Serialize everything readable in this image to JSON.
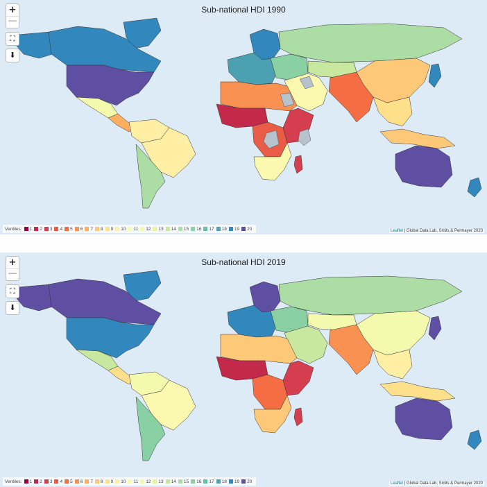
{
  "legend": {
    "title": "Ventiles:",
    "items": [
      {
        "label": "1",
        "color": "#9e0142"
      },
      {
        "label": "2",
        "color": "#c2294a"
      },
      {
        "label": "3",
        "color": "#d53e4f"
      },
      {
        "label": "4",
        "color": "#e95d47"
      },
      {
        "label": "5",
        "color": "#f46d43"
      },
      {
        "label": "6",
        "color": "#f99153"
      },
      {
        "label": "7",
        "color": "#fdae61"
      },
      {
        "label": "8",
        "color": "#fdc877"
      },
      {
        "label": "9",
        "color": "#fee08b"
      },
      {
        "label": "10",
        "color": "#feefa4"
      },
      {
        "label": "11",
        "color": "#fbf8b0"
      },
      {
        "label": "12",
        "color": "#f3faad"
      },
      {
        "label": "13",
        "color": "#e6f598"
      },
      {
        "label": "14",
        "color": "#c7e89e"
      },
      {
        "label": "15",
        "color": "#abdda4"
      },
      {
        "label": "16",
        "color": "#89d0a4"
      },
      {
        "label": "17",
        "color": "#66c2a5"
      },
      {
        "label": "18",
        "color": "#4ba0b1"
      },
      {
        "label": "19",
        "color": "#3288bd"
      },
      {
        "label": "20",
        "color": "#5e4fa2"
      }
    ]
  },
  "no_data_color": "#b6c2cc",
  "ocean_color": "#dcebf6",
  "attribution": {
    "leaflet": "Leaflet",
    "rest": " | Global Data Lab, Smits & Permayer 2020"
  },
  "controls": {
    "zoom_in": "+",
    "zoom_out": "—",
    "fullscreen_icon": "fullscreen-icon",
    "download_icon": "download-icon"
  },
  "maps": [
    {
      "id": "panel-1990",
      "title": "Sub-national HDI 1990",
      "regions": {
        "canada": 19,
        "greenland": 19,
        "alaska": 19,
        "usa": 20,
        "mexico": 12,
        "central_america": 7,
        "south_america_north": 10,
        "brazil": 10,
        "south_america_south": 15,
        "europe_west": 18,
        "scandinavia": 19,
        "eastern_europe": 16,
        "russia": 15,
        "central_asia": 14,
        "middle_east": 11,
        "north_africa": 6,
        "west_africa": 2,
        "central_africa": 4,
        "east_africa": 3,
        "southern_africa": 11,
        "madagascar": 3,
        "south_asia": 5,
        "china": 8,
        "southeast_asia": 9,
        "indonesia": 8,
        "japan": 19,
        "australia": 20,
        "new_zealand": 19
      }
    },
    {
      "id": "panel-2019",
      "title": "Sub-national HDI 2019",
      "regions": {
        "canada": 20,
        "greenland": 19,
        "alaska": 20,
        "usa": 19,
        "mexico": 14,
        "central_america": 9,
        "south_america_north": 12,
        "brazil": 11,
        "south_america_south": 16,
        "europe_west": 19,
        "scandinavia": 20,
        "eastern_europe": 16,
        "russia": 15,
        "central_asia": 12,
        "middle_east": 14,
        "north_africa": 8,
        "west_africa": 2,
        "central_africa": 5,
        "east_africa": 3,
        "southern_africa": 8,
        "madagascar": 3,
        "south_asia": 6,
        "china": 12,
        "southeast_asia": 10,
        "indonesia": 9,
        "japan": 20,
        "australia": 20,
        "new_zealand": 19
      }
    }
  ]
}
